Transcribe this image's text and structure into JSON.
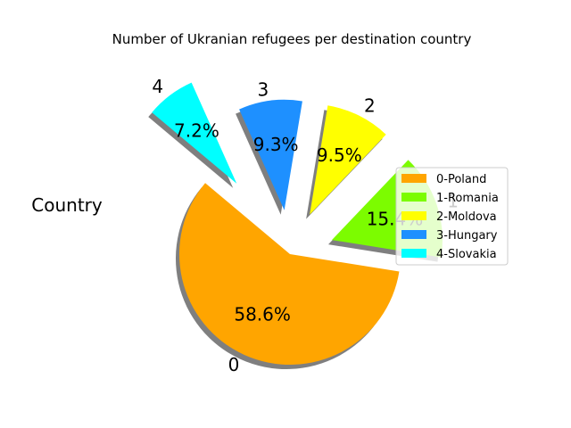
{
  "chart_data": {
    "type": "pie",
    "title": "Number of Ukranian refugees per destination country",
    "ylabel": "Country",
    "start_angle_deg": 140,
    "shadow": true,
    "slices": [
      {
        "label": "0",
        "legend": "0-Poland",
        "value": 58.6,
        "pct_text": "58.6%",
        "color": "#FFA500",
        "explode": 0.0
      },
      {
        "label": "1",
        "legend": "1-Romania",
        "value": 15.4,
        "pct_text": "15.4%",
        "color": "#7CFC00",
        "explode": 0.4
      },
      {
        "label": "2",
        "legend": "2-Moldova",
        "value": 9.5,
        "pct_text": "9.5%",
        "color": "#FFFF00",
        "explode": 0.4
      },
      {
        "label": "3",
        "legend": "3-Hungary",
        "value": 9.3,
        "pct_text": "9.3%",
        "color": "#1E90FF",
        "explode": 0.4
      },
      {
        "label": "4",
        "legend": "4-Slovakia",
        "value": 7.2,
        "pct_text": "7.2%",
        "color": "#00FFFF",
        "explode": 0.8
      }
    ],
    "legend_position": "right"
  }
}
